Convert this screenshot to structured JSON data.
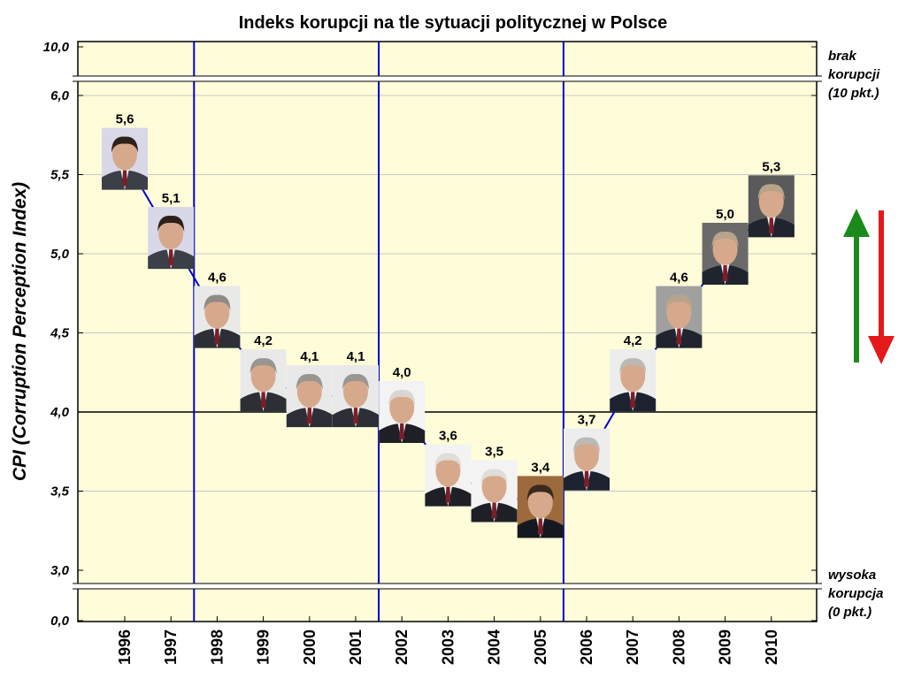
{
  "chart_data": {
    "type": "line",
    "title": "Indeks korupcji na tle sytuacji politycznej w Polsce",
    "ylabel": "CPI (Corruption Perception Index)",
    "xlabel": "",
    "categories": [
      "1996",
      "1997",
      "1998",
      "1999",
      "2000",
      "2001",
      "2002",
      "2003",
      "2004",
      "2005",
      "2006",
      "2007",
      "2008",
      "2009",
      "2010"
    ],
    "series": [
      {
        "values": [
          5.6,
          5.1,
          4.6,
          4.2,
          4.1,
          4.1,
          4.0,
          3.6,
          3.5,
          3.4,
          3.7,
          4.2,
          4.6,
          5.0,
          5.3
        ]
      }
    ],
    "data_labels": [
      "5,6",
      "5,1",
      "4,6",
      "4,2",
      "4,1",
      "4,1",
      "4,0",
      "3,6",
      "3,5",
      "3,4",
      "3,7",
      "4,2",
      "4,6",
      "5,0",
      "5,3"
    ],
    "ylim": [
      3.0,
      6.2
    ],
    "y_break": {
      "lower": "0,0",
      "upper": "10,0"
    },
    "y_ticks": [
      {
        "value": 3.0,
        "label": "3,0"
      },
      {
        "value": 3.5,
        "label": "3,5"
      },
      {
        "value": 4.0,
        "label": "4,0"
      },
      {
        "value": 4.5,
        "label": "4,5"
      },
      {
        "value": 5.0,
        "label": "5,0"
      },
      {
        "value": 5.5,
        "label": "5,5"
      },
      {
        "value": 6.0,
        "label": "6,0"
      }
    ],
    "grid": true,
    "government_change_boundaries": [
      "1997/1998",
      "2001/2002",
      "2005/2006"
    ],
    "marker_style": "portrait photos",
    "side_labels": {
      "top": [
        "brak",
        "korupcji",
        "(10 pkt.)"
      ],
      "bottom": [
        "wysoka",
        "korupcja",
        "(0 pkt.)"
      ]
    },
    "arrows": [
      {
        "direction": "up",
        "color": "#1a8a1a"
      },
      {
        "direction": "down",
        "color": "#e41a1a"
      }
    ],
    "colors": {
      "plot_background": "#fffcd9",
      "line": "#0000cc",
      "divider": "#0000cc",
      "grid": "#c8c8c8"
    }
  }
}
